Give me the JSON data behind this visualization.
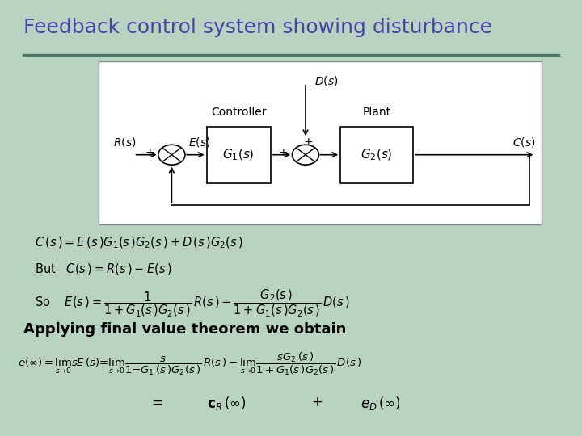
{
  "title": "Feedback control system showing disturbance",
  "title_color": "#4444aa",
  "title_fontsize": 18,
  "bg_color": "#b8d4c0",
  "separator_color": "#4a7a6a",
  "diagram_bg": "#ffffff",
  "text_color": "#222222",
  "bold_text_color": "#111111",
  "applying_text": "Applying final value theorem we obtain"
}
